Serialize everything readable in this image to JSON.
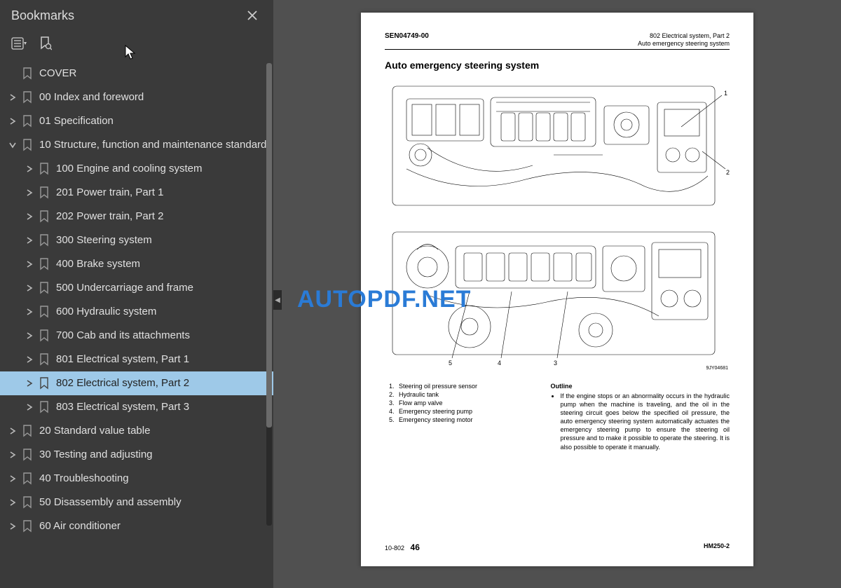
{
  "sidebar": {
    "title": "Bookmarks",
    "items": [
      {
        "label": "COVER",
        "indent": 0,
        "expand": "none",
        "selected": false
      },
      {
        "label": "00 Index and foreword",
        "indent": 0,
        "expand": "closed",
        "selected": false
      },
      {
        "label": "01 Specification",
        "indent": 0,
        "expand": "closed",
        "selected": false
      },
      {
        "label": "10 Structure, function and maintenance standard",
        "indent": 0,
        "expand": "open",
        "selected": false
      },
      {
        "label": "100 Engine and cooling system",
        "indent": 1,
        "expand": "closed",
        "selected": false
      },
      {
        "label": "201 Power train, Part 1",
        "indent": 1,
        "expand": "closed",
        "selected": false
      },
      {
        "label": "202 Power train, Part 2",
        "indent": 1,
        "expand": "closed",
        "selected": false
      },
      {
        "label": "300 Steering system",
        "indent": 1,
        "expand": "closed",
        "selected": false
      },
      {
        "label": "400 Brake system",
        "indent": 1,
        "expand": "closed",
        "selected": false
      },
      {
        "label": "500 Undercarriage and frame",
        "indent": 1,
        "expand": "closed",
        "selected": false
      },
      {
        "label": "600 Hydraulic system",
        "indent": 1,
        "expand": "closed",
        "selected": false
      },
      {
        "label": "700 Cab and its attachments",
        "indent": 1,
        "expand": "closed",
        "selected": false
      },
      {
        "label": "801 Electrical system, Part 1",
        "indent": 1,
        "expand": "closed",
        "selected": false
      },
      {
        "label": "802 Electrical system, Part 2",
        "indent": 1,
        "expand": "closed",
        "selected": true
      },
      {
        "label": "803 Electrical system, Part 3",
        "indent": 1,
        "expand": "closed",
        "selected": false
      },
      {
        "label": "20 Standard value table",
        "indent": 0,
        "expand": "closed",
        "selected": false
      },
      {
        "label": "30 Testing and adjusting",
        "indent": 0,
        "expand": "closed",
        "selected": false
      },
      {
        "label": "40 Troubleshooting",
        "indent": 0,
        "expand": "closed",
        "selected": false
      },
      {
        "label": "50 Disassembly and assembly",
        "indent": 0,
        "expand": "closed",
        "selected": false
      },
      {
        "label": "60 Air conditioner",
        "indent": 0,
        "expand": "closed",
        "selected": false
      }
    ]
  },
  "watermark": "AUTOPDF.NET",
  "page": {
    "header_left": "SEN04749-00",
    "header_right_line1": "802 Electrical system, Part 2",
    "header_right_line2": "Auto emergency steering system",
    "title": "Auto emergency steering system",
    "diagram_id": "9JY04681",
    "legend": [
      "Steering oil pressure sensor",
      "Hydraulic tank",
      "Flow amp valve",
      "Emergency steering pump",
      "Emergency steering motor"
    ],
    "outline_title": "Outline",
    "outline_text": "If the engine stops or an abnormality occurs in the hydraulic pump when the machine is traveling, and the oil in the steering circuit goes below the specified oil pressure, the auto emergency steering system automatically actuates the emergency steering pump to ensure the steering oil pressure and to make it possible to operate the steering. It is also possible to operate it manually.",
    "footer_section": "10-802",
    "footer_page": "46",
    "footer_model": "HM250-2"
  },
  "colors": {
    "sidebar_bg": "#3a3a3a",
    "selected_bg": "#9ec9e8",
    "watermark": "#2a7bd6",
    "content_bg": "#505050"
  }
}
